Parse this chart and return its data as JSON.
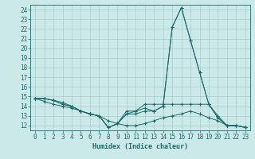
{
  "title": "",
  "xlabel": "Humidex (Indice chaleur)",
  "ylabel": "",
  "bg_color": "#cce9e9",
  "grid_color": "#aacccc",
  "line_color": "#1a6b6b",
  "xlim": [
    -0.5,
    23.5
  ],
  "ylim": [
    11.5,
    24.5
  ],
  "xticks": [
    0,
    1,
    2,
    3,
    4,
    5,
    6,
    7,
    8,
    9,
    10,
    11,
    12,
    13,
    14,
    15,
    16,
    17,
    18,
    19,
    20,
    21,
    22,
    23
  ],
  "yticks": [
    12,
    13,
    14,
    15,
    16,
    17,
    18,
    19,
    20,
    21,
    22,
    23,
    24
  ],
  "lines": [
    {
      "x": [
        0,
        1,
        2,
        3,
        4,
        5,
        6,
        7,
        8,
        9,
        10,
        11,
        12,
        13,
        14,
        15,
        16,
        17,
        18,
        19,
        20,
        21,
        22,
        23
      ],
      "y": [
        14.8,
        14.8,
        14.6,
        14.4,
        14.0,
        13.5,
        13.2,
        13.0,
        11.8,
        12.2,
        13.5,
        13.5,
        13.8,
        13.5,
        14.0,
        22.2,
        24.2,
        20.8,
        17.5,
        14.2,
        12.8,
        12.0,
        12.0,
        11.8
      ]
    },
    {
      "x": [
        0,
        1,
        2,
        3,
        4,
        5,
        6,
        7,
        8,
        9,
        10,
        11,
        12,
        13,
        14,
        15,
        16,
        17,
        18,
        19,
        20,
        21,
        22,
        23
      ],
      "y": [
        14.8,
        14.8,
        14.6,
        14.2,
        14.0,
        13.5,
        13.2,
        13.0,
        11.8,
        12.2,
        13.2,
        13.2,
        13.5,
        13.5,
        14.0,
        22.2,
        24.2,
        20.8,
        17.5,
        14.2,
        12.8,
        12.0,
        12.0,
        11.8
      ]
    },
    {
      "x": [
        0,
        1,
        2,
        3,
        4,
        5,
        6,
        7,
        8,
        9,
        10,
        11,
        12,
        13,
        14,
        15,
        16,
        17,
        18,
        19,
        20,
        21,
        22,
        23
      ],
      "y": [
        14.8,
        14.8,
        14.6,
        14.2,
        14.0,
        13.5,
        13.2,
        13.0,
        11.8,
        12.2,
        13.2,
        13.5,
        14.2,
        14.2,
        14.2,
        14.2,
        14.2,
        14.2,
        14.2,
        14.2,
        13.0,
        12.0,
        12.0,
        11.8
      ]
    },
    {
      "x": [
        0,
        1,
        2,
        3,
        4,
        5,
        6,
        7,
        8,
        9,
        10,
        11,
        12,
        13,
        14,
        15,
        16,
        17,
        18,
        19,
        20,
        21,
        22,
        23
      ],
      "y": [
        14.8,
        14.5,
        14.2,
        14.0,
        13.8,
        13.5,
        13.2,
        13.0,
        12.5,
        12.2,
        12.0,
        12.0,
        12.2,
        12.5,
        12.8,
        13.0,
        13.2,
        13.5,
        13.2,
        12.8,
        12.5,
        12.0,
        12.0,
        11.8
      ]
    }
  ]
}
